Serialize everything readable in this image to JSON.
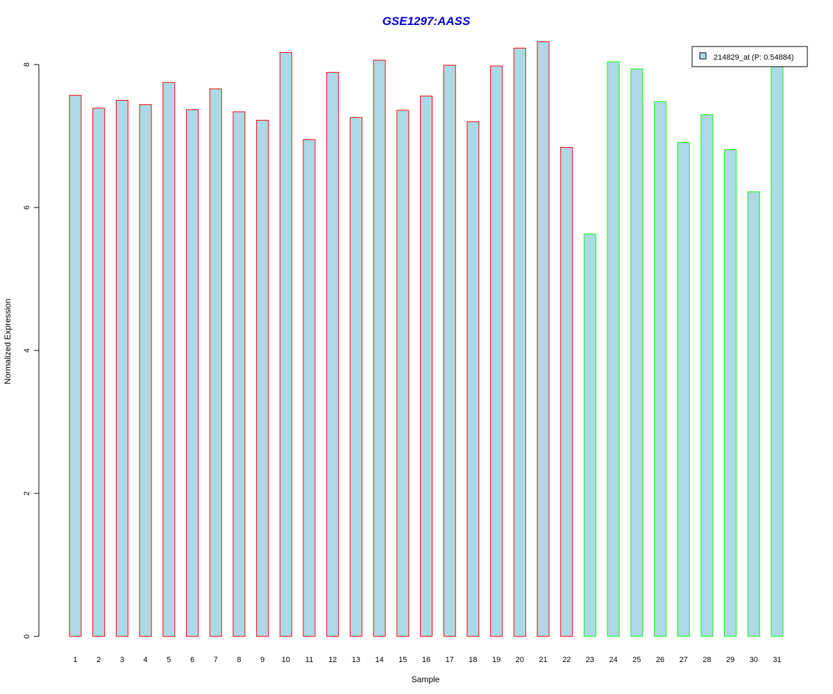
{
  "chart_data": {
    "type": "bar",
    "title": "GSE1297:AASS",
    "xlabel": "Sample",
    "ylabel": "Normalized Expression",
    "ylim": [
      0,
      8.3
    ],
    "yticks": [
      "0",
      "2",
      "4",
      "6",
      "8"
    ],
    "categories": [
      "1",
      "2",
      "3",
      "4",
      "5",
      "6",
      "7",
      "8",
      "9",
      "10",
      "11",
      "12",
      "13",
      "14",
      "15",
      "16",
      "17",
      "18",
      "19",
      "20",
      "21",
      "22",
      "23",
      "24",
      "25",
      "26",
      "27",
      "28",
      "29",
      "30",
      "31"
    ],
    "series": [
      {
        "name": "214829_at (P: 0.54884)",
        "fill_color": "#add8e6",
        "values": [
          7.57,
          7.39,
          7.5,
          7.44,
          7.75,
          7.37,
          7.66,
          7.34,
          7.22,
          8.17,
          6.95,
          7.89,
          7.26,
          8.06,
          7.36,
          7.56,
          7.99,
          7.2,
          7.98,
          8.23,
          8.32,
          6.84,
          5.63,
          8.04,
          7.94,
          7.48,
          6.91,
          7.3,
          6.81,
          6.22,
          8.0
        ],
        "border_colors": [
          "#ff0000",
          "#ff0000",
          "#ff0000",
          "#ff0000",
          "#ff0000",
          "#ff0000",
          "#ff0000",
          "#ff0000",
          "#ff0000",
          "#ff0000",
          "#ff0000",
          "#ff0000",
          "#ff0000",
          "#ff0000",
          "#ff0000",
          "#ff0000",
          "#ff0000",
          "#ff0000",
          "#ff0000",
          "#ff0000",
          "#ff0000",
          "#ff0000",
          "#00ff00",
          "#00ff00",
          "#00ff00",
          "#00ff00",
          "#00ff00",
          "#00ff00",
          "#00ff00",
          "#00ff00",
          "#00ff00"
        ]
      }
    ],
    "legend": {
      "label": "214829_at (P: 0.54884)",
      "position": "top-right"
    },
    "grid": false
  }
}
